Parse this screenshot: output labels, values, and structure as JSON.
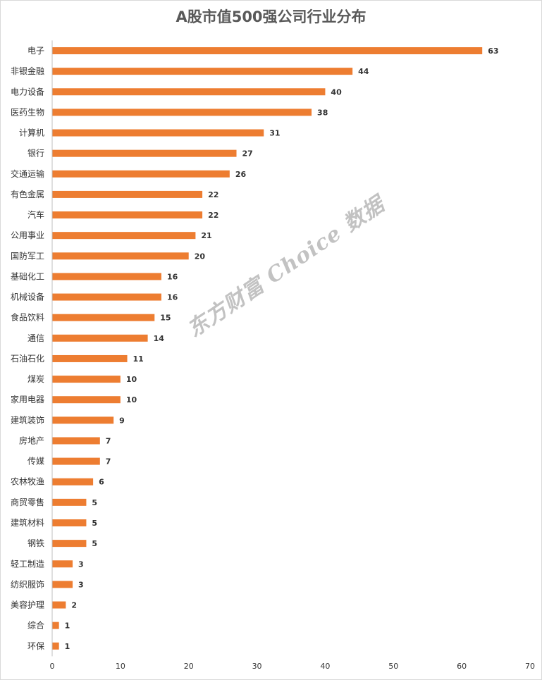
{
  "chart_data": {
    "type": "bar",
    "orientation": "horizontal",
    "title": "A股市值500强公司行业分布",
    "categories": [
      "电子",
      "非银金融",
      "电力设备",
      "医药生物",
      "计算机",
      "银行",
      "交通运输",
      "有色金属",
      "汽车",
      "公用事业",
      "国防军工",
      "基础化工",
      "机械设备",
      "食品饮料",
      "通信",
      "石油石化",
      "煤炭",
      "家用电器",
      "建筑装饰",
      "房地产",
      "传媒",
      "农林牧渔",
      "商贸零售",
      "建筑材料",
      "钢铁",
      "轻工制造",
      "纺织服饰",
      "美容护理",
      "综合",
      "环保"
    ],
    "values": [
      63,
      44,
      40,
      38,
      31,
      27,
      26,
      22,
      22,
      21,
      20,
      16,
      16,
      15,
      14,
      11,
      10,
      10,
      9,
      7,
      7,
      6,
      5,
      5,
      5,
      3,
      3,
      2,
      1,
      1
    ],
    "xlim": [
      0,
      70
    ],
    "xticks": [
      0,
      10,
      20,
      30,
      40,
      50,
      60,
      70
    ],
    "xlabel": "",
    "ylabel": "",
    "grid": false,
    "bar_color": "#ED7D31"
  },
  "watermark": "东方财富 Choice 数据"
}
